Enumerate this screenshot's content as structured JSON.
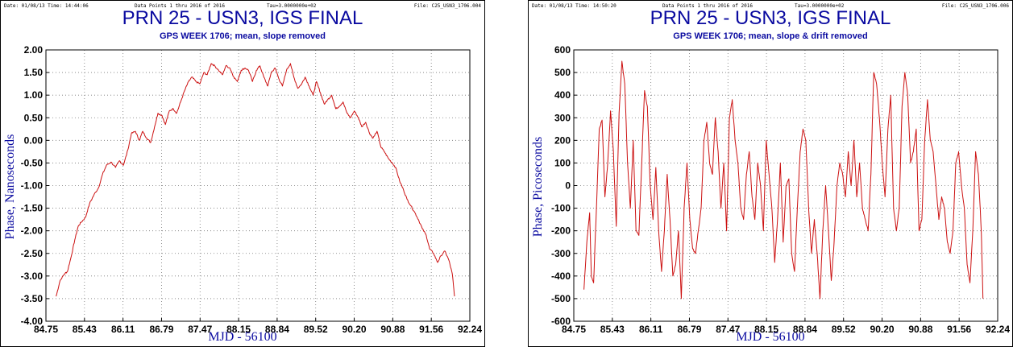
{
  "chart_data": [
    {
      "type": "line",
      "header": {
        "date": "Date: 01/08/13  Time: 14:44:06",
        "points": "Data Points 1 thru 2016 of 2016",
        "tau": "Tau=3.0000000e+02",
        "file": "File: C25_USN3_1706.004"
      },
      "title": "PRN 25 - USN3, IGS FINAL",
      "subtitle": "GPS WEEK 1706; mean, slope removed",
      "xlabel": "MJD - 56100",
      "ylabel": "Phase, Nanoseconds",
      "xlim": [
        84.75,
        92.24
      ],
      "ylim": [
        -4.0,
        2.0
      ],
      "xticks": [
        "84.75",
        "85.43",
        "86.11",
        "86.79",
        "87.47",
        "88.15",
        "88.84",
        "89.52",
        "90.20",
        "90.88",
        "91.56",
        "92.24"
      ],
      "yticks": [
        "2.00",
        "1.50",
        "1.00",
        "0.50",
        "0.00",
        "-0.50",
        "-1.00",
        "-1.50",
        "-2.00",
        "-2.50",
        "-3.00",
        "-3.50",
        "-4.00"
      ],
      "grid": true,
      "line_color": "#cc1111",
      "series": [
        {
          "x": [
            84.93,
            85.0,
            85.08,
            85.13,
            85.2,
            85.26,
            85.32,
            85.38,
            85.45,
            85.52,
            85.6,
            85.68,
            85.75,
            85.82,
            85.9,
            85.98,
            86.05,
            86.12,
            86.2,
            86.26,
            86.33,
            86.4,
            86.46,
            86.53,
            86.6,
            86.67,
            86.73,
            86.8,
            86.86,
            86.93,
            87.0,
            87.06,
            87.13,
            87.2,
            87.27,
            87.33,
            87.4,
            87.47,
            87.54,
            87.6,
            87.67,
            87.73,
            87.8,
            87.87,
            87.93,
            88.0,
            88.07,
            88.13,
            88.2,
            88.27,
            88.33,
            88.4,
            88.47,
            88.53,
            88.6,
            88.67,
            88.73,
            88.8,
            88.87,
            88.93,
            89.0,
            89.07,
            89.13,
            89.2,
            89.27,
            89.33,
            89.4,
            89.47,
            89.53,
            89.6,
            89.67,
            89.73,
            89.8,
            89.87,
            89.93,
            90.0,
            90.07,
            90.13,
            90.2,
            90.27,
            90.33,
            90.4,
            90.47,
            90.53,
            90.6,
            90.67,
            90.73,
            90.8,
            90.87,
            90.93,
            91.0,
            91.07,
            91.13,
            91.2,
            91.27,
            91.33,
            91.4,
            91.47,
            91.53,
            91.6,
            91.67,
            91.73,
            91.8,
            91.87,
            91.93,
            91.97
          ],
          "y": [
            -3.45,
            -3.1,
            -2.95,
            -2.9,
            -2.55,
            -2.2,
            -1.9,
            -1.8,
            -1.7,
            -1.4,
            -1.2,
            -1.05,
            -0.75,
            -0.55,
            -0.48,
            -0.6,
            -0.45,
            -0.55,
            -0.2,
            0.15,
            0.2,
            0.0,
            0.2,
            0.05,
            -0.05,
            0.3,
            0.6,
            0.55,
            0.35,
            0.65,
            0.7,
            0.6,
            0.85,
            1.1,
            1.3,
            1.4,
            1.3,
            1.25,
            1.5,
            1.45,
            1.7,
            1.65,
            1.55,
            1.45,
            1.65,
            1.6,
            1.4,
            1.3,
            1.55,
            1.6,
            1.55,
            1.3,
            1.55,
            1.65,
            1.4,
            1.2,
            1.5,
            1.6,
            1.35,
            1.2,
            1.55,
            1.7,
            1.4,
            1.15,
            1.25,
            1.4,
            1.2,
            1.0,
            1.3,
            1.05,
            0.8,
            0.9,
            1.0,
            0.7,
            0.75,
            0.85,
            0.6,
            0.5,
            0.65,
            0.5,
            0.3,
            0.4,
            0.15,
            0.05,
            0.2,
            -0.15,
            -0.25,
            -0.4,
            -0.5,
            -0.6,
            -0.9,
            -1.1,
            -1.3,
            -1.45,
            -1.6,
            -1.75,
            -1.95,
            -2.1,
            -2.4,
            -2.5,
            -2.7,
            -2.55,
            -2.45,
            -2.65,
            -2.95,
            -3.45
          ]
        }
      ]
    },
    {
      "type": "line",
      "header": {
        "date": "Date: 01/08/13  Time: 14:50:20",
        "points": "Data Points 1 thru 2016 of 2016",
        "tau": "Tau=3.0000000e+02",
        "file": "File: C25_USN3_1706.006"
      },
      "title": "PRN 25 - USN3, IGS FINAL",
      "subtitle": "GPS WEEK 1706; mean, slope & drift removed",
      "xlabel": "MJD - 56100",
      "ylabel": "Phase, Picoseconds",
      "xlim": [
        84.75,
        92.24
      ],
      "ylim": [
        -600,
        600
      ],
      "xticks": [
        "84.75",
        "85.43",
        "86.11",
        "86.79",
        "87.47",
        "88.15",
        "88.84",
        "89.52",
        "90.20",
        "90.88",
        "91.56",
        "92.24"
      ],
      "yticks": [
        "600",
        "500",
        "400",
        "300",
        "200",
        "100",
        "0",
        "-100",
        "-200",
        "-300",
        "-400",
        "-500",
        "-600"
      ],
      "grid": true,
      "line_color": "#cc1111",
      "series": [
        {
          "x": [
            84.93,
            84.98,
            85.03,
            85.06,
            85.1,
            85.15,
            85.2,
            85.25,
            85.3,
            85.35,
            85.4,
            85.45,
            85.5,
            85.55,
            85.6,
            85.65,
            85.7,
            85.75,
            85.8,
            85.85,
            85.9,
            85.95,
            86.0,
            86.05,
            86.1,
            86.15,
            86.2,
            86.25,
            86.3,
            86.35,
            86.4,
            86.45,
            86.5,
            86.55,
            86.6,
            86.65,
            86.7,
            86.75,
            86.8,
            86.85,
            86.9,
            86.95,
            87.0,
            87.05,
            87.1,
            87.15,
            87.2,
            87.25,
            87.3,
            87.35,
            87.4,
            87.45,
            87.5,
            87.55,
            87.6,
            87.65,
            87.7,
            87.75,
            87.8,
            87.85,
            87.9,
            87.95,
            88.0,
            88.05,
            88.1,
            88.15,
            88.2,
            88.25,
            88.3,
            88.35,
            88.4,
            88.45,
            88.5,
            88.55,
            88.6,
            88.65,
            88.7,
            88.75,
            88.8,
            88.85,
            88.9,
            88.95,
            89.0,
            89.05,
            89.1,
            89.15,
            89.2,
            89.25,
            89.3,
            89.35,
            89.4,
            89.45,
            89.5,
            89.55,
            89.6,
            89.65,
            89.7,
            89.75,
            89.8,
            89.85,
            89.9,
            89.95,
            90.0,
            90.05,
            90.1,
            90.15,
            90.2,
            90.25,
            90.3,
            90.35,
            90.4,
            90.45,
            90.5,
            90.55,
            90.6,
            90.65,
            90.7,
            90.75,
            90.8,
            90.85,
            90.9,
            90.95,
            91.0,
            91.05,
            91.1,
            91.15,
            91.2,
            91.25,
            91.3,
            91.35,
            91.4,
            91.45,
            91.5,
            91.55,
            91.6,
            91.65,
            91.7,
            91.75,
            91.8,
            91.85,
            91.9,
            91.95,
            91.98
          ],
          "y": [
            -460,
            -250,
            -120,
            -400,
            -430,
            -100,
            250,
            290,
            -50,
            100,
            330,
            150,
            -180,
            320,
            550,
            450,
            100,
            -100,
            200,
            -200,
            -220,
            100,
            420,
            350,
            0,
            -150,
            80,
            -200,
            -380,
            -200,
            50,
            -150,
            -400,
            -350,
            -200,
            -500,
            -100,
            100,
            -150,
            -280,
            -300,
            -200,
            -100,
            200,
            280,
            100,
            50,
            300,
            150,
            -100,
            100,
            -200,
            300,
            380,
            200,
            100,
            -100,
            -150,
            50,
            150,
            -50,
            -150,
            100,
            0,
            -200,
            200,
            50,
            -100,
            -340,
            -150,
            100,
            -250,
            0,
            30,
            -300,
            -380,
            -100,
            150,
            250,
            200,
            -100,
            -300,
            -150,
            -300,
            -500,
            -200,
            0,
            -200,
            -420,
            -250,
            0,
            100,
            50,
            -50,
            150,
            0,
            200,
            -50,
            100,
            -100,
            -150,
            -200,
            50,
            500,
            450,
            300,
            100,
            -50,
            250,
            400,
            -100,
            -200,
            -100,
            350,
            500,
            400,
            100,
            150,
            250,
            -200,
            -150,
            200,
            380,
            200,
            150,
            0,
            -150,
            -50,
            -100,
            -250,
            -300,
            -200,
            100,
            150,
            0,
            -100,
            -350,
            -430,
            -200,
            150,
            50,
            -200,
            -500
          ]
        }
      ]
    }
  ]
}
